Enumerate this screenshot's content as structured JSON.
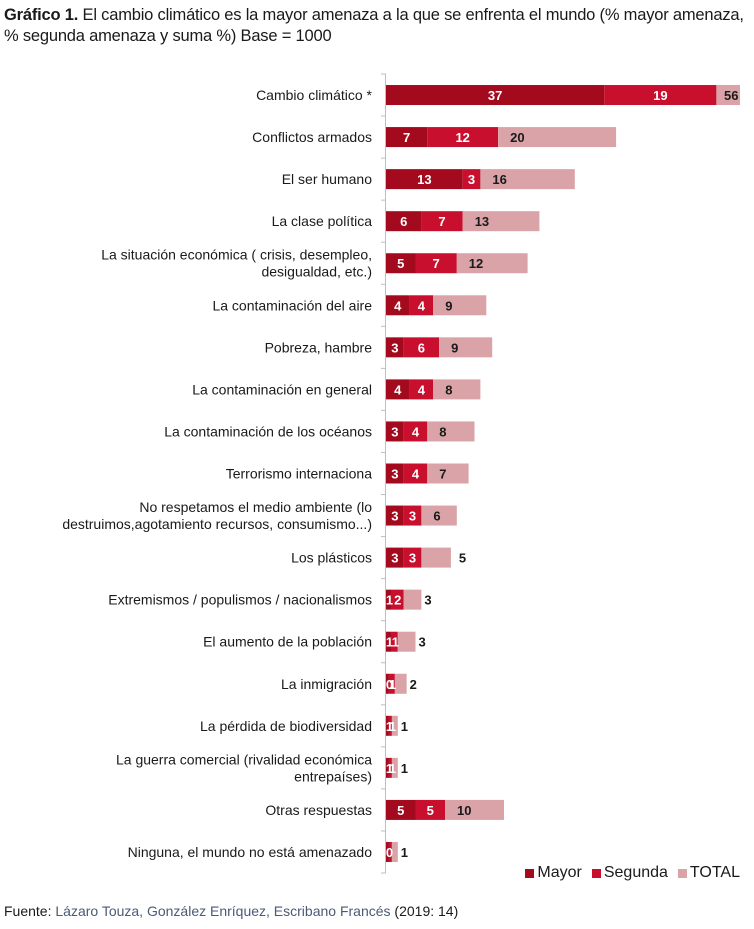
{
  "title": {
    "bold": "Gráfico 1.",
    "rest": " El cambio climático es la mayor amenaza a la que se enfrenta el mundo (% mayor amenaza, % segunda amenaza y suma %) Base = 1000"
  },
  "colors": {
    "mayor": "#A30A1E",
    "segunda": "#C8102E",
    "total": "#D9A3A8",
    "axis": "#BFBFBF"
  },
  "legend": [
    {
      "key": "mayor",
      "label": "Mayor"
    },
    {
      "key": "segunda",
      "label": "Segunda"
    },
    {
      "key": "total",
      "label": "TOTAL"
    }
  ],
  "source": {
    "prefix": "Fuente: ",
    "authors": "Lázaro Touza, González Enríquez, Escribano Francés",
    "suffix": " (2019: 14)"
  },
  "chart_data": {
    "type": "bar",
    "orientation": "horizontal",
    "stacked": true,
    "title": "Gráfico 1. El cambio climático es la mayor amenaza a la que se enfrenta el mundo (% mayor amenaza, % segunda amenaza y suma %) Base = 1000",
    "xlabel": "",
    "ylabel": "",
    "xlim": [
      0,
      60
    ],
    "grid": false,
    "legend_position": "bottom-right",
    "categories": [
      [
        "Cambio climático *"
      ],
      [
        "Conflictos armados"
      ],
      [
        "El ser humano"
      ],
      [
        "La clase política"
      ],
      [
        "La situación económica ( crisis, desempleo,",
        "desigualdad, etc.)"
      ],
      [
        "La contaminación del aire"
      ],
      [
        "Pobreza, hambre"
      ],
      [
        "La contaminación en general"
      ],
      [
        "La contaminación de los océanos"
      ],
      [
        "Terrorismo internaciona"
      ],
      [
        "No respetamos el medio ambiente (lo",
        "destruimos,agotamiento recursos, consumismo...)"
      ],
      [
        "Los plásticos"
      ],
      [
        "Extremismos / populismos / nacionalismos"
      ],
      [
        "El aumento de la población"
      ],
      [
        "La inmigración"
      ],
      [
        "La pérdida de biodiversidad"
      ],
      [
        "La guerra comercial (rivalidad económica",
        "entrepaíses)"
      ],
      [
        "Otras respuestas"
      ],
      [
        "Ninguna, el mundo no está amenazado"
      ]
    ],
    "series": [
      {
        "name": "Mayor",
        "key": "mayor",
        "values": [
          37,
          7,
          13,
          6,
          5,
          4,
          3,
          4,
          3,
          3,
          3,
          3,
          1,
          1,
          0.5,
          0.5,
          0.5,
          5,
          0.5
        ],
        "labels": [
          "37",
          "7",
          "13",
          "6",
          "5",
          "4",
          "3",
          "4",
          "3",
          "3",
          "3",
          "3",
          "1",
          "1",
          "0",
          "1",
          "1",
          "5",
          "0"
        ]
      },
      {
        "name": "Segunda",
        "key": "segunda",
        "values": [
          19,
          12,
          3,
          7,
          7,
          4,
          6,
          4,
          4,
          4,
          3,
          3,
          2,
          1,
          1,
          0.5,
          0.5,
          5,
          0.5
        ],
        "labels": [
          "19",
          "12",
          "3",
          "7",
          "7",
          "4",
          "6",
          "4",
          "4",
          "4",
          "3",
          "3",
          "2",
          "1",
          "1",
          "1",
          "1",
          "5",
          ""
        ]
      },
      {
        "name": "TOTAL",
        "key": "total",
        "values": [
          56,
          20,
          16,
          13,
          12,
          9,
          9,
          8,
          8,
          7,
          6,
          5,
          3,
          3,
          2,
          1,
          1,
          10,
          1
        ],
        "labels": [
          "56",
          "20",
          "16",
          "13",
          "12",
          "9",
          "9",
          "8",
          "8",
          "7",
          "6",
          "5",
          "3",
          "3",
          "2",
          "1",
          "1",
          "10",
          "1"
        ]
      }
    ]
  }
}
